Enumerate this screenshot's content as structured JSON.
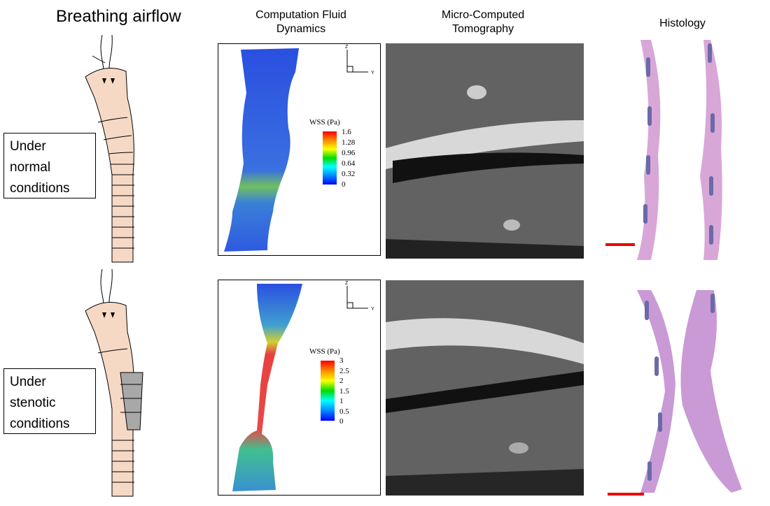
{
  "title": "Breathing airflow",
  "columns": {
    "cfd": "Computation Fluid\nDynamics",
    "cfd_line1": "Computation Fluid",
    "cfd_line2": "Dynamics",
    "ct_line1": "Micro-Computed",
    "ct_line2": "Tomography",
    "histology": "Histology"
  },
  "rows": [
    {
      "label_lines": [
        "Under",
        "normal",
        "conditions"
      ],
      "legend": {
        "title": "WSS (Pa)",
        "ticks": [
          "1.6",
          "1.28",
          "0.96",
          "0.64",
          "0.32",
          "0"
        ]
      },
      "axes": {
        "z": "Z",
        "y": "Y"
      }
    },
    {
      "label_lines": [
        "Under",
        "stenotic",
        "conditions"
      ],
      "legend": {
        "title": "WSS (Pa)",
        "ticks": [
          "3",
          "2.5",
          "2",
          "1.5",
          "1",
          "0.5",
          "0"
        ]
      },
      "axes": {
        "z": "Z",
        "y": "Y"
      }
    }
  ],
  "colors": {
    "trachea": "#f6d9c5",
    "stenosis": "#a8a8a8",
    "scale_bar": "#e00000",
    "histology": "#d9a6d8"
  }
}
